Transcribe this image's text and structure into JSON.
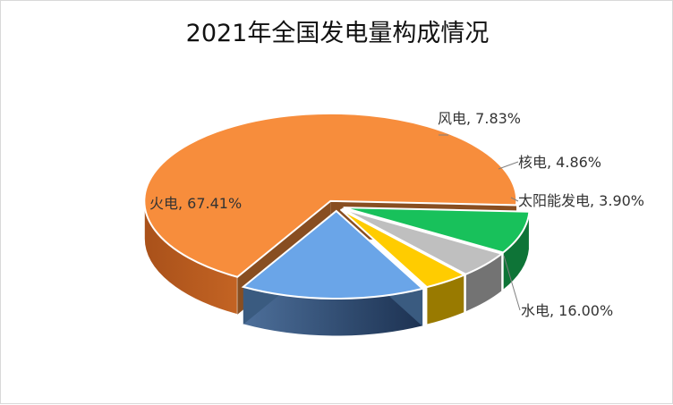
{
  "chart_data": {
    "type": "pie",
    "title": "2021年全国发电量构成情况",
    "three_d": true,
    "exploded": true,
    "legend": "none",
    "slices": [
      {
        "name": "火电",
        "value": 67.41,
        "label": "火电, 67.41%",
        "color": "#f78d3c"
      },
      {
        "name": "风电",
        "value": 7.83,
        "label": "风电, 7.83%",
        "color": "#18c15b"
      },
      {
        "name": "核电",
        "value": 4.86,
        "label": "核电, 4.86%",
        "color": "#bfbfbf"
      },
      {
        "name": "太阳能发电",
        "value": 3.9,
        "label": "太阳能发电, 3.90%",
        "color": "#ffcc00"
      },
      {
        "name": "水电",
        "value": 16.0,
        "label": "水电, 16.00%",
        "color": "#6aa5e8"
      }
    ]
  }
}
